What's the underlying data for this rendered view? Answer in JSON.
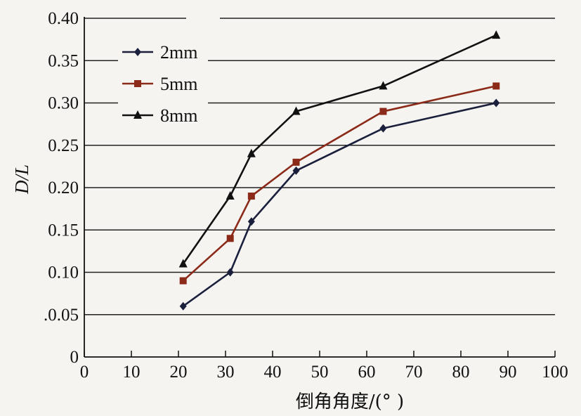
{
  "chart_data": {
    "type": "line",
    "title": "",
    "xlabel": "倒角角度/(°  )",
    "ylabel": "D/L",
    "xlim": [
      0,
      100
    ],
    "ylim": [
      0,
      0.4
    ],
    "xticks": [
      0,
      10,
      20,
      30,
      40,
      50,
      60,
      70,
      80,
      90,
      100
    ],
    "xtick_labels": [
      "0",
      "10",
      "20",
      "30",
      "40",
      "50",
      "60",
      "70",
      "80",
      "90",
      "100"
    ],
    "yticks": [
      0,
      0.05,
      0.1,
      0.15,
      0.2,
      0.25,
      0.3,
      0.35,
      0.4
    ],
    "ytick_labels": [
      "0",
      ".0.05",
      "0.10",
      "0.15",
      "0.20",
      "0.25",
      "0.30",
      "0.35",
      "0.40"
    ],
    "grid": "horizontal",
    "legend_position": "top-left",
    "x": [
      21,
      31,
      35.5,
      45,
      63.5,
      87.5
    ],
    "series": [
      {
        "name": "2mm",
        "marker": "diamond",
        "color": "#1a1f3c",
        "values": [
          0.06,
          0.1,
          0.16,
          0.22,
          0.27,
          0.3
        ]
      },
      {
        "name": "5mm",
        "marker": "square",
        "color": "#8b2a18",
        "values": [
          0.09,
          0.14,
          0.19,
          0.23,
          0.29,
          0.32
        ]
      },
      {
        "name": "8mm",
        "marker": "triangle",
        "color": "#111111",
        "values": [
          0.11,
          0.19,
          0.24,
          0.29,
          0.32,
          0.38
        ]
      }
    ]
  }
}
